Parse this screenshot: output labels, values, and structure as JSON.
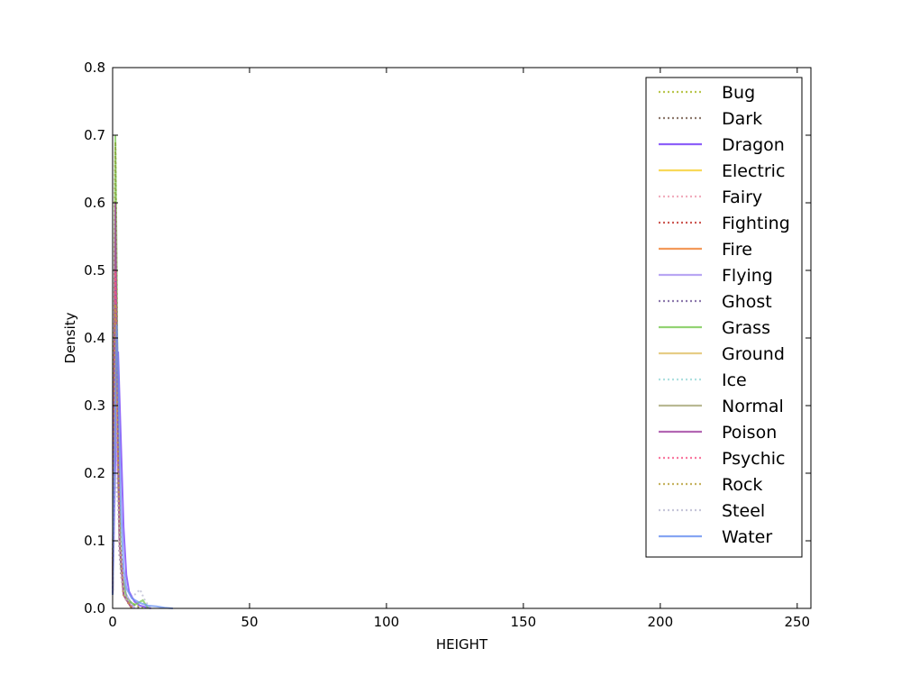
{
  "chart_data": {
    "type": "line",
    "title": "",
    "xlabel": "HEIGHT",
    "ylabel": "Density",
    "xlim": [
      0,
      255
    ],
    "ylim": [
      0,
      0.8
    ],
    "xticks": [
      0,
      50,
      100,
      150,
      200,
      250
    ],
    "yticks": [
      0.0,
      0.1,
      0.2,
      0.3,
      0.4,
      0.5,
      0.6,
      0.7,
      0.8
    ],
    "grid": false,
    "legend_position": "top-right",
    "series": [
      {
        "name": "Bug",
        "color": "#a8b820",
        "style": "dotted",
        "points": [
          [
            0,
            0.02
          ],
          [
            0.4,
            0.25
          ],
          [
            0.8,
            0.6
          ],
          [
            1.0,
            0.69
          ],
          [
            1.3,
            0.55
          ],
          [
            2,
            0.25
          ],
          [
            3,
            0.06
          ],
          [
            4,
            0.02
          ],
          [
            6,
            0.01
          ],
          [
            9,
            0.004
          ],
          [
            12,
            0
          ]
        ]
      },
      {
        "name": "Dark",
        "color": "#705848",
        "style": "dotted",
        "points": [
          [
            0,
            0.02
          ],
          [
            0.5,
            0.2
          ],
          [
            1.0,
            0.45
          ],
          [
            1.5,
            0.35
          ],
          [
            2.5,
            0.12
          ],
          [
            4,
            0.03
          ],
          [
            6,
            0.01
          ],
          [
            10,
            0
          ]
        ]
      },
      {
        "name": "Dragon",
        "color": "#7038f8",
        "style": "solid",
        "points": [
          [
            0,
            0.02
          ],
          [
            1,
            0.22
          ],
          [
            2,
            0.38
          ],
          [
            3,
            0.25
          ],
          [
            4,
            0.12
          ],
          [
            5,
            0.05
          ],
          [
            6,
            0.025
          ],
          [
            8,
            0.01
          ],
          [
            10,
            0.004
          ],
          [
            14,
            0
          ]
        ]
      },
      {
        "name": "Electric",
        "color": "#f8d030",
        "style": "solid",
        "points": [
          [
            0,
            0.02
          ],
          [
            0.5,
            0.2
          ],
          [
            1.0,
            0.4
          ],
          [
            1.5,
            0.3
          ],
          [
            2.5,
            0.1
          ],
          [
            4,
            0.02
          ],
          [
            7,
            0
          ]
        ]
      },
      {
        "name": "Fairy",
        "color": "#ee99ac",
        "style": "dotted",
        "points": [
          [
            0,
            0.02
          ],
          [
            0.5,
            0.2
          ],
          [
            1.0,
            0.45
          ],
          [
            1.5,
            0.3
          ],
          [
            2.5,
            0.08
          ],
          [
            4,
            0.02
          ],
          [
            7,
            0
          ]
        ]
      },
      {
        "name": "Fighting",
        "color": "#c03028",
        "style": "dotted",
        "points": [
          [
            0,
            0.02
          ],
          [
            0.5,
            0.3
          ],
          [
            1.0,
            0.69
          ],
          [
            1.4,
            0.5
          ],
          [
            2,
            0.2
          ],
          [
            3,
            0.05
          ],
          [
            5,
            0.01
          ],
          [
            8,
            0
          ]
        ]
      },
      {
        "name": "Fire",
        "color": "#f08030",
        "style": "solid",
        "points": [
          [
            0,
            0.02
          ],
          [
            0.5,
            0.2
          ],
          [
            1.0,
            0.5
          ],
          [
            1.5,
            0.35
          ],
          [
            2.5,
            0.1
          ],
          [
            4,
            0.02
          ],
          [
            7,
            0
          ]
        ]
      },
      {
        "name": "Flying",
        "color": "#a890f0",
        "style": "solid",
        "points": [
          [
            0,
            0.02
          ],
          [
            1,
            0.3
          ],
          [
            2,
            0.18
          ],
          [
            3,
            0.06
          ],
          [
            5,
            0.02
          ],
          [
            8,
            0
          ]
        ]
      },
      {
        "name": "Ghost",
        "color": "#705898",
        "style": "dotted",
        "points": [
          [
            0,
            0.02
          ],
          [
            0.5,
            0.2
          ],
          [
            1.0,
            0.4
          ],
          [
            1.5,
            0.3
          ],
          [
            2.5,
            0.08
          ],
          [
            4,
            0.02
          ],
          [
            7,
            0
          ]
        ]
      },
      {
        "name": "Grass",
        "color": "#78c850",
        "style": "solid",
        "points": [
          [
            0,
            0.02
          ],
          [
            0.5,
            0.3
          ],
          [
            1.0,
            0.7
          ],
          [
            1.4,
            0.55
          ],
          [
            2,
            0.25
          ],
          [
            3,
            0.06
          ],
          [
            5,
            0.015
          ],
          [
            8,
            0.005
          ],
          [
            11,
            0.012
          ],
          [
            13,
            0
          ]
        ]
      },
      {
        "name": "Ground",
        "color": "#e0c068",
        "style": "solid",
        "points": [
          [
            0,
            0.02
          ],
          [
            0.5,
            0.2
          ],
          [
            1.0,
            0.45
          ],
          [
            1.5,
            0.35
          ],
          [
            2.5,
            0.1
          ],
          [
            4,
            0.02
          ],
          [
            7,
            0
          ]
        ]
      },
      {
        "name": "Ice",
        "color": "#98d8d8",
        "style": "dotted",
        "points": [
          [
            0,
            0.02
          ],
          [
            0.5,
            0.2
          ],
          [
            1.0,
            0.45
          ],
          [
            1.5,
            0.3
          ],
          [
            2.5,
            0.1
          ],
          [
            4,
            0.02
          ],
          [
            7,
            0
          ]
        ]
      },
      {
        "name": "Normal",
        "color": "#a8a878",
        "style": "solid",
        "points": [
          [
            0,
            0.02
          ],
          [
            0.5,
            0.25
          ],
          [
            1.0,
            0.55
          ],
          [
            1.5,
            0.4
          ],
          [
            2.5,
            0.1
          ],
          [
            4,
            0.02
          ],
          [
            7,
            0
          ]
        ]
      },
      {
        "name": "Poison",
        "color": "#a040a0",
        "style": "solid",
        "points": [
          [
            0,
            0.02
          ],
          [
            0.5,
            0.3
          ],
          [
            1.0,
            0.6
          ],
          [
            1.5,
            0.4
          ],
          [
            2.5,
            0.1
          ],
          [
            4,
            0.02
          ],
          [
            7,
            0
          ]
        ]
      },
      {
        "name": "Psychic",
        "color": "#f85888",
        "style": "dotted",
        "points": [
          [
            0,
            0.02
          ],
          [
            0.5,
            0.25
          ],
          [
            1.0,
            0.5
          ],
          [
            1.5,
            0.35
          ],
          [
            2.5,
            0.1
          ],
          [
            4,
            0.02
          ],
          [
            7,
            0
          ]
        ]
      },
      {
        "name": "Rock",
        "color": "#b8a038",
        "style": "dotted",
        "points": [
          [
            0,
            0.02
          ],
          [
            0.5,
            0.2
          ],
          [
            1.0,
            0.45
          ],
          [
            1.5,
            0.35
          ],
          [
            2.5,
            0.1
          ],
          [
            4,
            0.02
          ],
          [
            7,
            0
          ]
        ]
      },
      {
        "name": "Steel",
        "color": "#b8b8d0",
        "style": "dotted",
        "points": [
          [
            0,
            0.02
          ],
          [
            1,
            0.2
          ],
          [
            2,
            0.15
          ],
          [
            3,
            0.05
          ],
          [
            5,
            0.01
          ],
          [
            8,
            0.02
          ],
          [
            10,
            0.028
          ],
          [
            12,
            0.01
          ],
          [
            14,
            0
          ]
        ]
      },
      {
        "name": "Water",
        "color": "#6890f0",
        "style": "solid",
        "points": [
          [
            0,
            0.02
          ],
          [
            1,
            0.3
          ],
          [
            1.5,
            0.42
          ],
          [
            2,
            0.35
          ],
          [
            3,
            0.15
          ],
          [
            4,
            0.06
          ],
          [
            5,
            0.03
          ],
          [
            7,
            0.015
          ],
          [
            10,
            0.008
          ],
          [
            13,
            0.004
          ],
          [
            16,
            0.003
          ],
          [
            19,
            0.001
          ],
          [
            22,
            0
          ]
        ]
      }
    ]
  }
}
